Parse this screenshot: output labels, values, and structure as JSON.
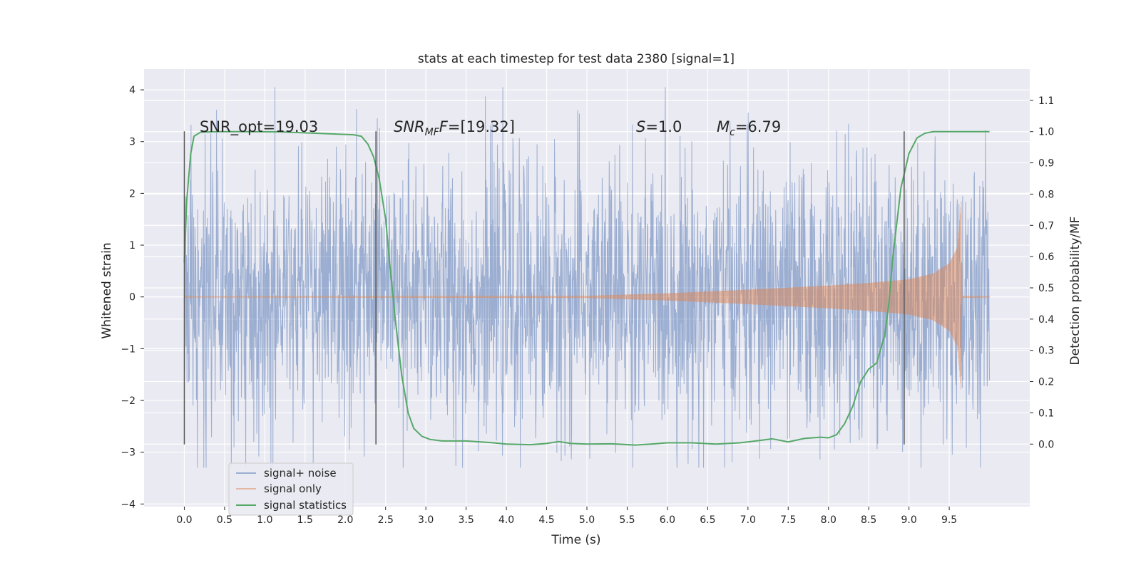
{
  "chart_data": {
    "type": "line",
    "title": "stats at each timestep for test data 2380 [signal=1]",
    "xlabel": "Time (s)",
    "ylabel": "Whitened strain",
    "ylabel_right": "Detection probability/MF",
    "xlim": [
      -0.5,
      10.5
    ],
    "ylim": [
      -4.05,
      4.4
    ],
    "ylim_right": [
      -0.2,
      1.2
    ],
    "x_ticks": [
      0.0,
      0.5,
      1.0,
      1.5,
      2.0,
      2.5,
      3.0,
      3.5,
      4.0,
      4.5,
      5.0,
      5.5,
      6.0,
      6.5,
      7.0,
      7.5,
      8.0,
      8.5,
      9.0,
      9.5
    ],
    "x_tick_labels": [
      "0.0",
      "0.5",
      "1.0",
      "1.5",
      "2.0",
      "2.5",
      "3.0",
      "3.5",
      "4.0",
      "4.5",
      "5.0",
      "5.5",
      "6.0",
      "6.5",
      "7.0",
      "7.5",
      "8.0",
      "8.5",
      "9.0",
      "9.5"
    ],
    "y_ticks": [
      -4,
      -3,
      -2,
      -1,
      0,
      1,
      2,
      3,
      4
    ],
    "y_tick_labels": [
      "−4",
      "−3",
      "−2",
      "−1",
      "0",
      "1",
      "2",
      "3",
      "4"
    ],
    "y_ticks_right": [
      0.0,
      0.1,
      0.2,
      0.3,
      0.4,
      0.5,
      0.6,
      0.7,
      0.8,
      0.9,
      1.0,
      1.1
    ],
    "y_tick_labels_right": [
      "0.0",
      "0.1",
      "0.2",
      "0.3",
      "0.4",
      "0.5",
      "0.6",
      "0.7",
      "0.8",
      "0.9",
      "1.0",
      "1.1"
    ],
    "grid": true,
    "legend_position": "lower-left",
    "annotations": {
      "snr_opt": "SNR_opt=19.03",
      "snr_mf_prefix": "SNR",
      "snr_mf_sub": "MF",
      "snr_mf_value": "=[19.32]",
      "s_prefix": "S",
      "s_value": "=1.0",
      "mc_prefix": "M",
      "mc_sub": "c",
      "mc_value": "=6.79"
    },
    "markers_x": [
      0.0,
      2.38,
      8.94
    ],
    "series": [
      {
        "name": "signal+ noise",
        "axis": "left",
        "color": "#4c72b0",
        "alpha": 0.5,
        "description_values": {
          "x_start": 0.0,
          "x_end": 10.0,
          "envelope": [
            -3.3,
            4.05
          ],
          "typical_amplitude": 1.3
        }
      },
      {
        "name": "signal only",
        "axis": "left",
        "color": "#dd8452",
        "alpha": 0.5,
        "amplitude_x": [
          0.0,
          5.0,
          6.0,
          7.0,
          8.0,
          8.5,
          9.0,
          9.3,
          9.5,
          9.6,
          9.65,
          9.66,
          10.0
        ],
        "amplitude_y": [
          0.01,
          0.02,
          0.07,
          0.14,
          0.22,
          0.27,
          0.34,
          0.45,
          0.65,
          0.95,
          1.85,
          0.02,
          0.01
        ],
        "oscillation_end": 9.66,
        "x_end": 10.0
      },
      {
        "name": "signal statistics",
        "axis": "right",
        "color": "#55a868",
        "x": [
          0.0,
          0.03,
          0.08,
          0.12,
          0.2,
          0.4,
          0.8,
          1.2,
          1.6,
          1.9,
          2.1,
          2.2,
          2.28,
          2.35,
          2.42,
          2.5,
          2.55,
          2.62,
          2.7,
          2.78,
          2.85,
          2.95,
          3.05,
          3.2,
          3.5,
          3.8,
          4.0,
          4.3,
          4.5,
          4.65,
          4.8,
          5.0,
          5.3,
          5.6,
          5.8,
          6.0,
          6.3,
          6.6,
          6.9,
          7.1,
          7.3,
          7.5,
          7.7,
          7.9,
          8.0,
          8.1,
          8.2,
          8.3,
          8.4,
          8.5,
          8.6,
          8.7,
          8.75,
          8.8,
          8.9,
          9.0,
          9.1,
          9.2,
          9.3,
          9.5,
          9.7,
          9.9,
          10.0
        ],
        "y": [
          0.58,
          0.78,
          0.93,
          0.985,
          0.998,
          1.0,
          1.0,
          0.999,
          0.995,
          0.992,
          0.99,
          0.985,
          0.96,
          0.92,
          0.85,
          0.72,
          0.58,
          0.4,
          0.22,
          0.1,
          0.05,
          0.025,
          0.015,
          0.01,
          0.01,
          0.005,
          0.0,
          -0.002,
          0.002,
          0.008,
          0.002,
          0.0,
          0.001,
          -0.003,
          0.0,
          0.004,
          0.004,
          0.0,
          0.004,
          0.01,
          0.017,
          0.007,
          0.018,
          0.022,
          0.02,
          0.03,
          0.065,
          0.12,
          0.2,
          0.24,
          0.26,
          0.35,
          0.45,
          0.6,
          0.82,
          0.93,
          0.98,
          0.995,
          1.0,
          1.0,
          1.0,
          1.0,
          1.0
        ]
      }
    ]
  },
  "colors": {
    "axes_background": "#eaeaf2",
    "grid": "#ffffff",
    "marker_line": "#555555"
  }
}
